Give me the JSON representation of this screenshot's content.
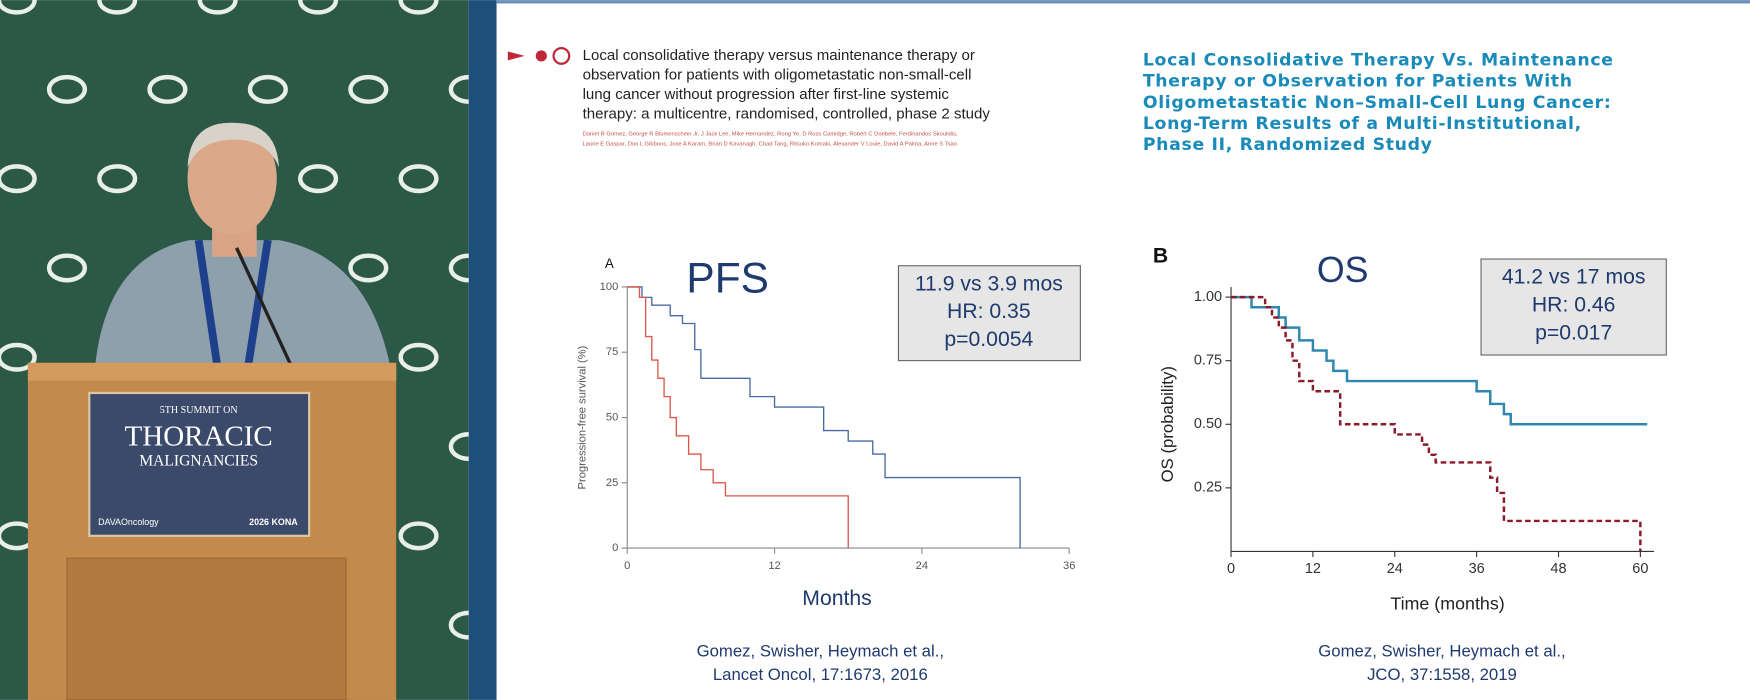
{
  "video_frame": {
    "podium_sign": {
      "line1": "5TH SUMMIT ON",
      "line2": "THORACIC",
      "line3": "MALIGNANCIES",
      "left_logo": "DAVAOncology",
      "right_logo": "2026 KONA"
    }
  },
  "slide": {
    "paper_left": {
      "title_lines": [
        "Local consolidative therapy versus maintenance therapy or",
        "observation for patients with oligometastatic non-small-cell",
        "lung cancer without progression after first-line systemic",
        "therapy: a multicentre, randomised, controlled, phase 2 study"
      ],
      "authors_lines": [
        "Daniel R Gomez, George R Blumenschein Jr, J Jack Lee, Mike Hernandez, Rong Ye, D Ross Camidge, Robert C Doebele, Ferdinandos Skoulidis,",
        "Laurie E Gaspar, Don L Gibbons, Jose A Karam, Brian D Kavanagh, Chad Tang, Ritsuko Komaki, Alexander V Louie, David A Palma, Anne S Tsao"
      ]
    },
    "paper_right": {
      "title_lines": [
        "Local Consolidative Therapy Vs. Maintenance",
        "Therapy or Observation for Patients With",
        "Oligometastatic Non–Small-Cell Lung Cancer:",
        "Long-Term Results of a Multi-Institutional,",
        "Phase II, Randomized Study"
      ]
    },
    "citations": [
      {
        "lines": [
          "Gomez, Swisher, Heymach et al.,",
          "Lancet Oncol, 17:1673, 2016"
        ]
      },
      {
        "lines": [
          "Gomez, Swisher, Heymach et al.,",
          "JCO, 37:1558,  2019"
        ]
      }
    ]
  },
  "chart_data": [
    {
      "type": "line",
      "step": true,
      "panel": "A",
      "title": "PFS",
      "stats_box": [
        "11.9 vs 3.9 mos",
        "HR: 0.35",
        "p=0.0054"
      ],
      "xlabel": "Months",
      "ylabel": "Progression-free survival (%)",
      "xlim": [
        0,
        36
      ],
      "ylim": [
        0,
        100
      ],
      "xticks": [
        0,
        12,
        24,
        36
      ],
      "yticks": [
        0,
        25,
        50,
        75,
        100
      ],
      "series": [
        {
          "color": "#4a6aa5",
          "dash": false,
          "x": [
            0,
            1.2,
            2,
            3.5,
            4.5,
            5.5,
            6,
            10,
            12,
            16,
            18,
            20,
            21,
            32,
            32
          ],
          "values": [
            100,
            96,
            93,
            89,
            86,
            76,
            65,
            58,
            54,
            45,
            41,
            36,
            27,
            27,
            0
          ]
        },
        {
          "color": "#d9584a",
          "dash": false,
          "x": [
            0,
            1,
            1.5,
            2,
            2.5,
            3,
            3.5,
            4,
            5,
            6,
            7,
            8,
            18,
            18
          ],
          "values": [
            100,
            96,
            81,
            72,
            65,
            58,
            50,
            43,
            36,
            30,
            25,
            20,
            20,
            0
          ]
        }
      ]
    },
    {
      "type": "line",
      "step": true,
      "panel": "B",
      "title": "OS",
      "stats_box": [
        "41.2 vs 17 mos",
        "HR: 0.46",
        "p=0.017"
      ],
      "xlabel": "Time (months)",
      "ylabel": "OS (probability)",
      "xlim": [
        0,
        62
      ],
      "ylim": [
        0,
        1.04
      ],
      "xticks": [
        0,
        12,
        24,
        36,
        48,
        60
      ],
      "yticks": [
        {
          "value": 0.25,
          "label": "0.25"
        },
        {
          "value": 0.5,
          "label": "0.50"
        },
        {
          "value": 0.75,
          "label": "0.75"
        },
        {
          "value": 1,
          "label": "1.00"
        }
      ],
      "series": [
        {
          "color": "#2f86b0",
          "dash": false,
          "x": [
            0,
            3,
            7,
            8,
            10,
            12,
            14,
            15,
            17,
            36,
            38,
            40,
            41,
            61
          ],
          "values": [
            1,
            0.96,
            0.92,
            0.88,
            0.83,
            0.79,
            0.75,
            0.71,
            0.67,
            0.63,
            0.58,
            0.54,
            0.5,
            0.5
          ]
        },
        {
          "color": "#8b1a2a",
          "dash": true,
          "x": [
            0,
            5,
            6,
            7,
            8,
            9,
            10,
            12,
            16,
            24,
            28,
            29,
            30,
            38,
            39,
            40,
            59,
            60
          ],
          "values": [
            1,
            0.96,
            0.92,
            0.88,
            0.83,
            0.75,
            0.67,
            0.63,
            0.5,
            0.46,
            0.42,
            0.38,
            0.35,
            0.29,
            0.23,
            0.12,
            0.12,
            0
          ]
        }
      ]
    }
  ]
}
